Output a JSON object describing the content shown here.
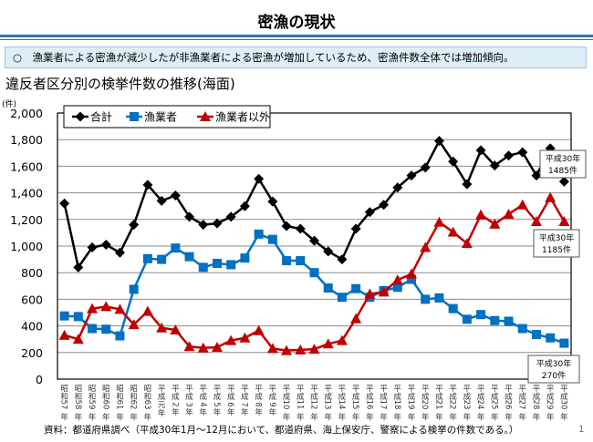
{
  "page": {
    "title": "密漁の現状",
    "summary": "○　漁業者による密漁が減少したが非漁業者による密漁が増加しているため、密漁件数全体では増加傾向。",
    "footer": "資料：都道府県調べ（平成30年1月～12月において、都道府県、海上保安庁、警察による検挙の件数である。）",
    "page_number": "1"
  },
  "chart_data": {
    "type": "line",
    "title": "違反者区分別の検挙件数の推移(海面)",
    "ylabel": "(件)",
    "xlabel": "",
    "ylim": [
      0,
      2000
    ],
    "yticks": [
      0,
      200,
      400,
      600,
      800,
      1000,
      1200,
      1400,
      1600,
      1800,
      2000
    ],
    "ytick_labels": [
      "0",
      "200",
      "400",
      "600",
      "800",
      "1,000",
      "1,200",
      "1,400",
      "1,600",
      "1,800",
      "2,000"
    ],
    "grid": true,
    "legend_position": "top-left",
    "categories": [
      "昭和57年",
      "昭和58年",
      "昭和59年",
      "昭和60年",
      "昭和61年",
      "昭和62年",
      "昭和63年",
      "平成元年",
      "平成2年",
      "平成3年",
      "平成4年",
      "平成5年",
      "平成6年",
      "平成7年",
      "平成8年",
      "平成9年",
      "平成10年",
      "平成11年",
      "平成12年",
      "平成13年",
      "平成14年",
      "平成15年",
      "平成16年",
      "平成17年",
      "平成18年",
      "平成19年",
      "平成20年",
      "平成21年",
      "平成22年",
      "平成23年",
      "平成24年",
      "平成25年",
      "平成26年",
      "平成27年",
      "平成28年",
      "平成29年",
      "平成30年"
    ],
    "series": [
      {
        "name": "合計",
        "color": "#000000",
        "marker": "diamond",
        "values": [
          1320,
          840,
          990,
          1010,
          950,
          1160,
          1460,
          1340,
          1380,
          1220,
          1160,
          1170,
          1220,
          1300,
          1505,
          1335,
          1150,
          1130,
          1040,
          960,
          900,
          1130,
          1255,
          1310,
          1440,
          1530,
          1590,
          1790,
          1635,
          1465,
          1720,
          1605,
          1680,
          1705,
          1530,
          1735,
          1485
        ]
      },
      {
        "name": "漁業者",
        "color": "#0070c0",
        "marker": "square",
        "values": [
          475,
          470,
          380,
          375,
          325,
          675,
          905,
          900,
          985,
          920,
          840,
          870,
          860,
          910,
          1090,
          1050,
          890,
          890,
          800,
          685,
          615,
          680,
          615,
          665,
          690,
          750,
          600,
          610,
          530,
          450,
          485,
          440,
          435,
          380,
          335,
          310,
          270
        ]
      },
      {
        "name": "漁業者以外",
        "color": "#c00000",
        "marker": "triangle",
        "values": [
          330,
          300,
          530,
          545,
          525,
          410,
          510,
          385,
          370,
          245,
          235,
          240,
          290,
          310,
          365,
          230,
          215,
          220,
          225,
          265,
          290,
          455,
          640,
          655,
          745,
          790,
          990,
          1180,
          1105,
          1020,
          1235,
          1165,
          1240,
          1310,
          1185,
          1365,
          1185
        ]
      }
    ],
    "annotations": [
      {
        "series": "合計",
        "line1": "平成30年",
        "line2": "1485件"
      },
      {
        "series": "漁業者以外",
        "line1": "平成30年",
        "line2": "1185件"
      },
      {
        "series": "漁業者",
        "line1": "平成30年",
        "line2": "270件"
      }
    ]
  }
}
